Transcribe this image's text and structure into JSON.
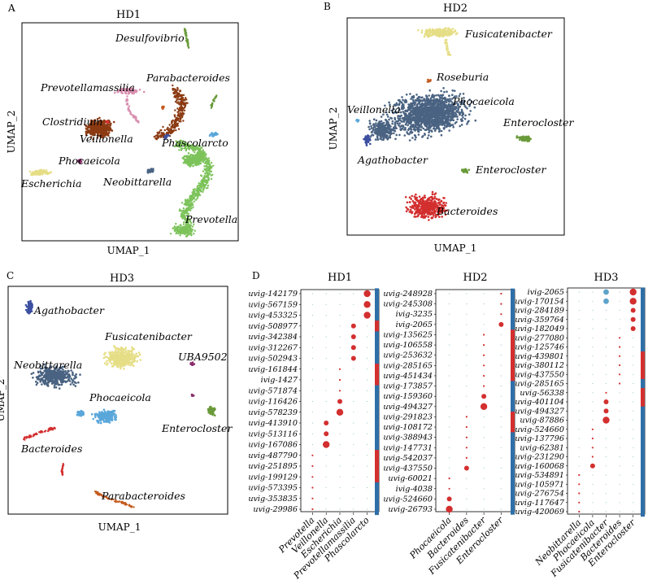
{
  "colors": {
    "green": "#7CC35A",
    "brown": "#8B3A12",
    "yellow": "#E6DE86",
    "pink": "#D98FB0",
    "red": "#D32F2F",
    "darkred": "#B71C1C",
    "steel": "#4A6382",
    "lightblue": "#5AA7DA",
    "navy": "#3C4FA0",
    "olive": "#6A9A3A",
    "purple": "#8A2D6B",
    "orange": "#C45A1E",
    "teal": "#5DA3C9",
    "bar_blue": "#2E6FA8"
  },
  "panel_a": {
    "letter": "A",
    "title": "HD1",
    "xlabel": "UMAP_1",
    "ylabel": "UMAP_2",
    "labels": [
      "Desulfovibrio",
      "Parabacteroides",
      "Prevotellamassilia",
      "Clostridium",
      "Veillonella",
      "Phascolarcto",
      "Phocaeicola",
      "Neobittarella",
      "Escherichia",
      "Prevotella"
    ]
  },
  "panel_b": {
    "letter": "B",
    "title": "HD2",
    "xlabel": "UMAP_1",
    "ylabel": "UMAP_2",
    "labels": [
      "Fusicatenibacter",
      "Roseburia",
      "Veillonella",
      "Phocaeicola",
      "Enterocloster",
      "Agathobacter",
      "Enterocloster",
      "Bacteroides"
    ]
  },
  "panel_c": {
    "letter": "C",
    "title": "HD3",
    "xlabel": "UMAP_1",
    "ylabel": "UMAP_2",
    "labels": [
      "Agathobacter",
      "Fusicatenibacter",
      "UBA9502",
      "Neobittarella",
      "Phocaeicola",
      "Enterocloster",
      "Bacteroides",
      "Parabacteroides"
    ]
  },
  "panel_d_letter": "D",
  "chart_data": [
    {
      "type": "scatter",
      "panel": "A",
      "title": "HD1",
      "xlabel": "UMAP_1",
      "ylabel": "UMAP_2",
      "clusters": [
        {
          "name": "Prevotella",
          "color": "green"
        },
        {
          "name": "Veillonella",
          "color": "brown"
        },
        {
          "name": "Escherichia",
          "color": "yellow"
        },
        {
          "name": "Prevotellamassilia",
          "color": "pink"
        },
        {
          "name": "Parabacteroides",
          "color": "brown"
        },
        {
          "name": "Desulfovibrio",
          "color": "olive"
        },
        {
          "name": "Clostridium",
          "color": "red"
        },
        {
          "name": "Phocaeicola",
          "color": "purple"
        },
        {
          "name": "Neobittarella",
          "color": "steel"
        },
        {
          "name": "Phascolarcto",
          "color": "lightblue"
        }
      ]
    },
    {
      "type": "scatter",
      "panel": "B",
      "title": "HD2",
      "xlabel": "UMAP_1",
      "ylabel": "UMAP_2",
      "clusters": [
        {
          "name": "Phocaeicola",
          "color": "steel"
        },
        {
          "name": "Bacteroides",
          "color": "red"
        },
        {
          "name": "Fusicatenibacter",
          "color": "yellow"
        },
        {
          "name": "Enterocloster",
          "color": "olive"
        },
        {
          "name": "Agathobacter",
          "color": "navy"
        },
        {
          "name": "Roseburia",
          "color": "orange"
        },
        {
          "name": "Veillonella",
          "color": "lightblue"
        }
      ]
    },
    {
      "type": "scatter",
      "panel": "C",
      "title": "HD3",
      "xlabel": "UMAP_1",
      "ylabel": "UMAP_2",
      "clusters": [
        {
          "name": "Agathobacter",
          "color": "navy"
        },
        {
          "name": "Fusicatenibacter",
          "color": "yellow"
        },
        {
          "name": "UBA9502",
          "color": "purple"
        },
        {
          "name": "Neobittarella",
          "color": "steel"
        },
        {
          "name": "Phocaeicola",
          "color": "lightblue"
        },
        {
          "name": "Enterocloster",
          "color": "olive"
        },
        {
          "name": "Bacteroides",
          "color": "red"
        },
        {
          "name": "Parabacteroides",
          "color": "orange"
        }
      ]
    },
    {
      "type": "dotplot",
      "panel": "D",
      "title": "HD1",
      "columns": [
        "Prevotella",
        "Veillonella",
        "Escherichia",
        "Prevotellamassilia",
        "Phascolarcto"
      ],
      "rows": [
        "uvig-142179",
        "uvig-567159",
        "uvig-453325",
        "uvig-508977",
        "uvig-342384",
        "uvig-312267",
        "uvig-502943",
        "uvig-161844",
        "ivig-1427",
        "uvig-571874",
        "uvig-116426",
        "uvig-578239",
        "uvig-413910",
        "uvig-513116",
        "uvig-167086",
        "uvig-487790",
        "uvig-251895",
        "uvig-199129",
        "uvig-573395",
        "uvig-353835",
        "uvig-29986"
      ],
      "dot_column": [
        4,
        4,
        4,
        3,
        3,
        3,
        3,
        2,
        2,
        2,
        2,
        2,
        1,
        1,
        1,
        0,
        0,
        0,
        0,
        0,
        0
      ],
      "dot_size": [
        3,
        3,
        3,
        2,
        2,
        2,
        2,
        1,
        1,
        1,
        2,
        3,
        2,
        2,
        3,
        1,
        1,
        1,
        1,
        1,
        1
      ],
      "bar_groups": [
        "blue",
        "blue",
        "blue",
        "red",
        "blue",
        "blue",
        "blue",
        "red",
        "red",
        "blue",
        "blue",
        "blue",
        "blue",
        "blue",
        "blue",
        "red",
        "red",
        "red",
        "blue",
        "blue",
        "blue"
      ]
    },
    {
      "type": "dotplot",
      "panel": "D",
      "title": "HD2",
      "columns": [
        "Phocaeicola",
        "Bacteroides",
        "Fusicatenibacter",
        "Enterocloster"
      ],
      "rows": [
        "uvig-248928",
        "uvig-245308",
        "ivig-3235",
        "ivig-2065",
        "uvig-135625",
        "uvig-106558",
        "uvig-253632",
        "uvig-285165",
        "uvig-451434",
        "uvig-173857",
        "uvig-159360",
        "uvig-494327",
        "uvig-291823",
        "uvig-108172",
        "uvig-388943",
        "uvig-147731",
        "uvig-542037",
        "uvig-437550",
        "uvig-60021",
        "ivig-4038",
        "uvig-524660",
        "uvig-26793"
      ],
      "dot_column": [
        3,
        3,
        3,
        3,
        2,
        2,
        2,
        2,
        2,
        2,
        2,
        2,
        1,
        1,
        1,
        1,
        1,
        1,
        0,
        0,
        0,
        0
      ],
      "dot_size": [
        1,
        1,
        1,
        2,
        1,
        1,
        1,
        1,
        1,
        1,
        2,
        3,
        1,
        1,
        1,
        1,
        1,
        2,
        1,
        1,
        2,
        3
      ],
      "bar_groups": [
        "blue",
        "blue",
        "blue",
        "blue",
        "red",
        "red",
        "red",
        "red",
        "red",
        "blue",
        "blue",
        "blue",
        "red",
        "red",
        "blue",
        "blue",
        "blue",
        "blue",
        "blue",
        "blue",
        "blue",
        "blue"
      ]
    },
    {
      "type": "dotplot",
      "panel": "D",
      "title": "HD3",
      "columns": [
        "Neobittarella",
        "Phocaeicola",
        "Fusicatenibacter",
        "Bacteroides",
        "Enterocloster"
      ],
      "rows": [
        "ivig-2065",
        "uvig-170154",
        "uvig-284189",
        "uvig-359764",
        "uvig-182049",
        "uvig-277080",
        "uvig-125746",
        "uvig-439801",
        "uvig-380112",
        "uvig-437550",
        "uvig-285165",
        "uvig-56338",
        "uvig-401104",
        "uvig-494327",
        "uvig-87886",
        "uvig-524660",
        "uvig-137796",
        "uvig-62381",
        "uvig-231290",
        "uvig-160068",
        "uvig-534891",
        "uvig-105971",
        "uvig-276754",
        "uvig-117647",
        "uvig-420069"
      ],
      "dot_column": [
        4,
        4,
        4,
        4,
        4,
        3,
        3,
        3,
        3,
        3,
        3,
        2,
        2,
        2,
        2,
        1,
        1,
        1,
        1,
        1,
        0,
        0,
        0,
        0,
        0
      ],
      "dot_size": [
        3,
        3,
        2,
        2,
        2,
        1,
        1,
        1,
        1,
        1,
        1,
        1,
        2,
        2,
        3,
        1,
        1,
        1,
        1,
        2,
        1,
        1,
        1,
        1,
        1
      ],
      "bar_groups": [
        "blue",
        "blue",
        "blue",
        "blue",
        "blue",
        "blue",
        "blue",
        "red",
        "red",
        "red",
        "blue",
        "red",
        "red",
        "blue",
        "blue",
        "blue",
        "blue",
        "blue",
        "blue",
        "blue",
        "blue",
        "blue",
        "blue",
        "blue",
        "blue"
      ]
    }
  ]
}
